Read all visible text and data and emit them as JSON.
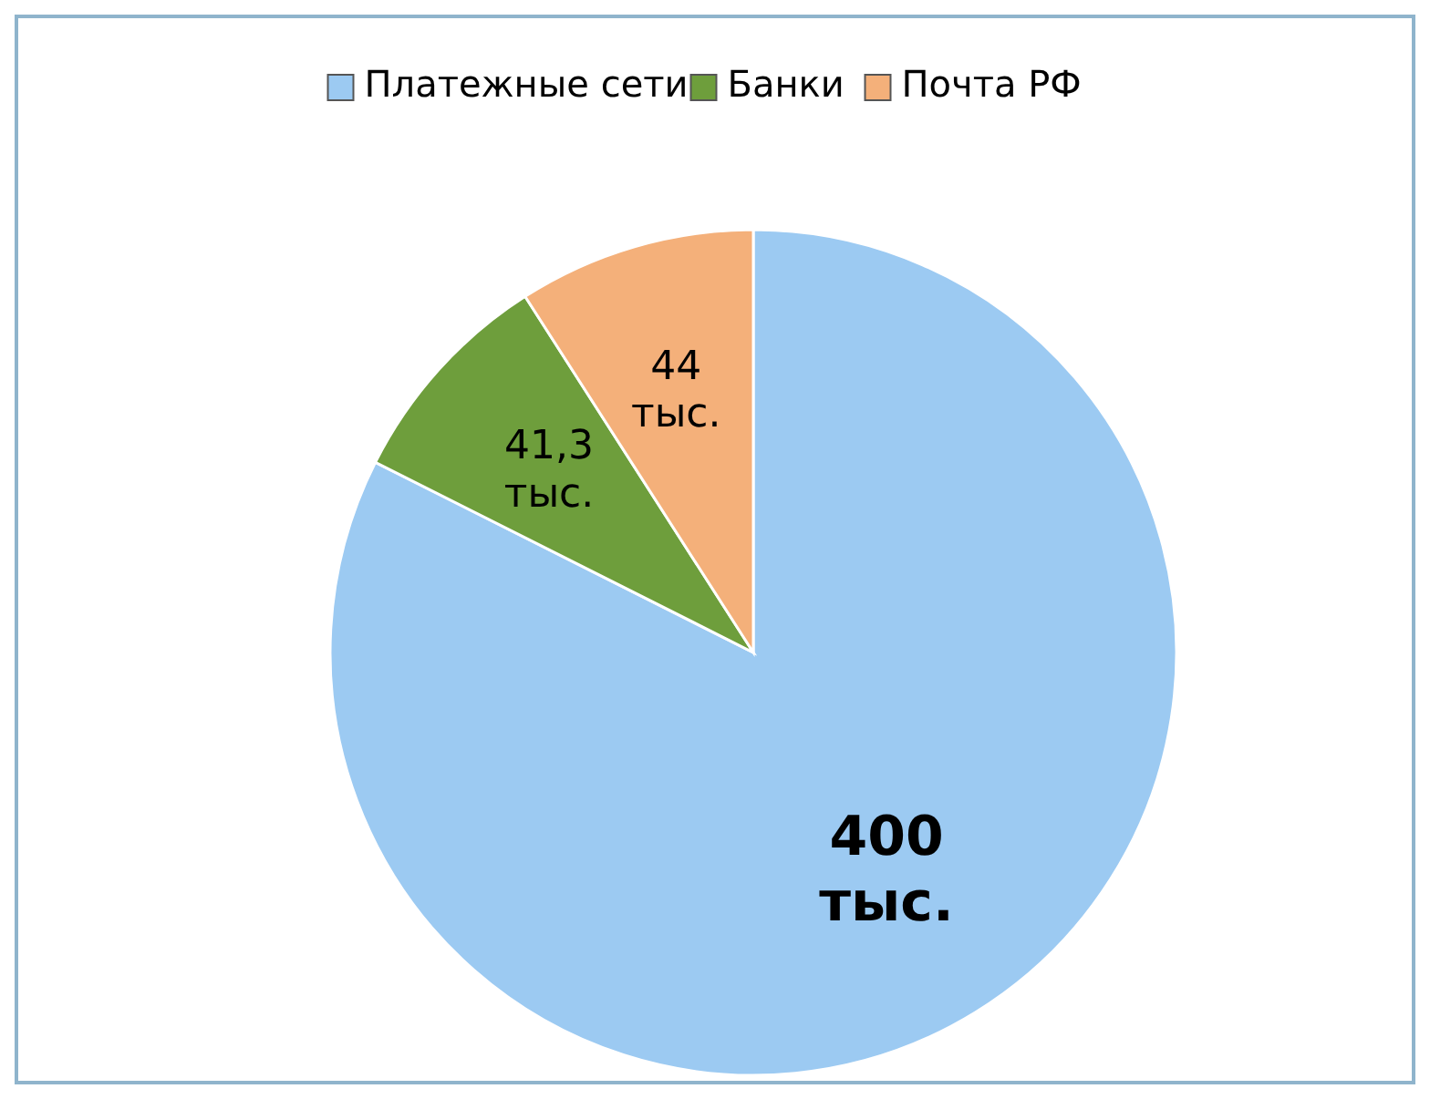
{
  "chart_data": {
    "type": "pie",
    "categories": [
      "Платежные сети",
      "Банки",
      "Почта РФ"
    ],
    "values": [
      400,
      41.3,
      44
    ],
    "value_labels": [
      "400 тыс.",
      "41,3 тыс.",
      "44 тыс."
    ],
    "colors": [
      "#9ccaf2",
      "#6e9e3c",
      "#f4b07a"
    ],
    "legend": "top"
  }
}
